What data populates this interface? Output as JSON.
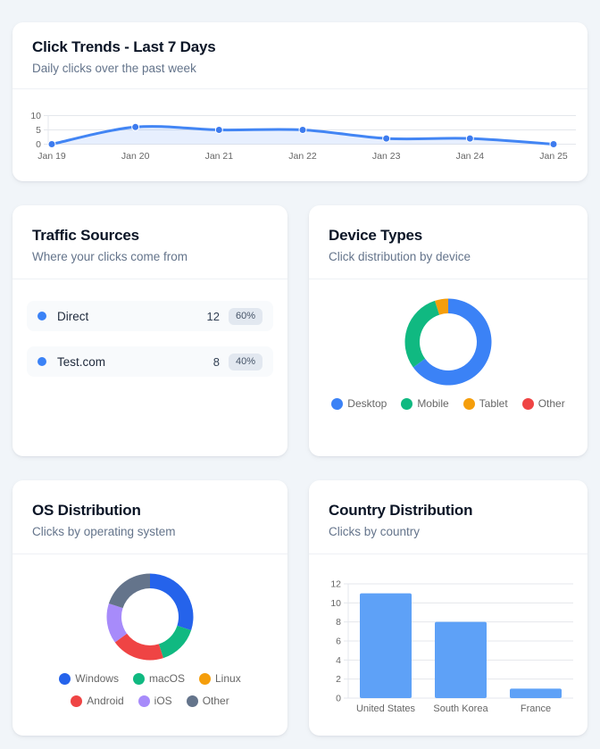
{
  "page": {
    "background": "#f1f5f9",
    "card_background": "#ffffff"
  },
  "colors": {
    "grid": "#e4e7ec",
    "axis_text": "#666666",
    "trend_line": "#4285f4",
    "trend_point": "#3d7bee",
    "trend_fill": "rgba(66,133,244,0.13)",
    "bar_blue": "#5ea1f7",
    "traffic_dot": "#3b82f6",
    "badge_bg": "#e2e8f0",
    "badge_text": "#475569"
  },
  "cards": {
    "trends": {
      "title": "Click Trends - Last 7 Days",
      "subtitle": "Daily clicks over the past week"
    },
    "traffic": {
      "title": "Traffic Sources",
      "subtitle": "Where your clicks come from",
      "rows": [
        {
          "label": "Direct",
          "count": "12",
          "percent": "60%"
        },
        {
          "label": "Test.com",
          "count": "8",
          "percent": "40%"
        }
      ]
    },
    "devices": {
      "title": "Device Types",
      "subtitle": "Click distribution by device"
    },
    "os": {
      "title": "OS Distribution",
      "subtitle": "Clicks by operating system"
    },
    "countries": {
      "title": "Country Distribution",
      "subtitle": "Clicks by country"
    }
  },
  "chart_data": [
    {
      "id": "trends",
      "type": "line",
      "title": "Click Trends - Last 7 Days",
      "x": [
        "Jan 19",
        "Jan 20",
        "Jan 21",
        "Jan 22",
        "Jan 23",
        "Jan 24",
        "Jan 25"
      ],
      "values": [
        0,
        6,
        5,
        5,
        2,
        2,
        0
      ],
      "ylim": [
        0,
        10
      ],
      "yticks": [
        0,
        5,
        10
      ],
      "grid": true,
      "legend": false,
      "area": true,
      "line_color": "#4285f4",
      "point_color": "#3d7bee",
      "fill_color": "rgba(66,133,244,0.13)"
    },
    {
      "id": "devices",
      "type": "donut",
      "title": "Device Types",
      "labels": [
        "Desktop",
        "Mobile",
        "Tablet",
        "Other"
      ],
      "values": [
        13,
        6,
        1,
        0
      ],
      "percents": [
        65,
        30,
        5,
        0
      ],
      "colors": [
        "#3b82f6",
        "#10b981",
        "#f59e0b",
        "#ef4444"
      ],
      "legend": true,
      "legend_position": "bottom"
    },
    {
      "id": "os",
      "type": "donut",
      "title": "OS Distribution",
      "labels": [
        "Windows",
        "macOS",
        "Linux",
        "Android",
        "iOS",
        "Other"
      ],
      "values": [
        6,
        3,
        0,
        4,
        3,
        4
      ],
      "percents": [
        30,
        15,
        0,
        20,
        15,
        20
      ],
      "colors": [
        "#2563eb",
        "#10b981",
        "#f59e0b",
        "#ef4444",
        "#a78bfa",
        "#64748b"
      ],
      "legend": true,
      "legend_position": "bottom"
    },
    {
      "id": "countries",
      "type": "bar",
      "title": "Country Distribution",
      "categories": [
        "United States",
        "South Korea",
        "France"
      ],
      "values": [
        11,
        8,
        1
      ],
      "ylim": [
        0,
        12
      ],
      "yticks": [
        0,
        2,
        4,
        6,
        8,
        10,
        12
      ],
      "grid": true,
      "legend": false,
      "bar_color": "#5ea1f7"
    }
  ]
}
